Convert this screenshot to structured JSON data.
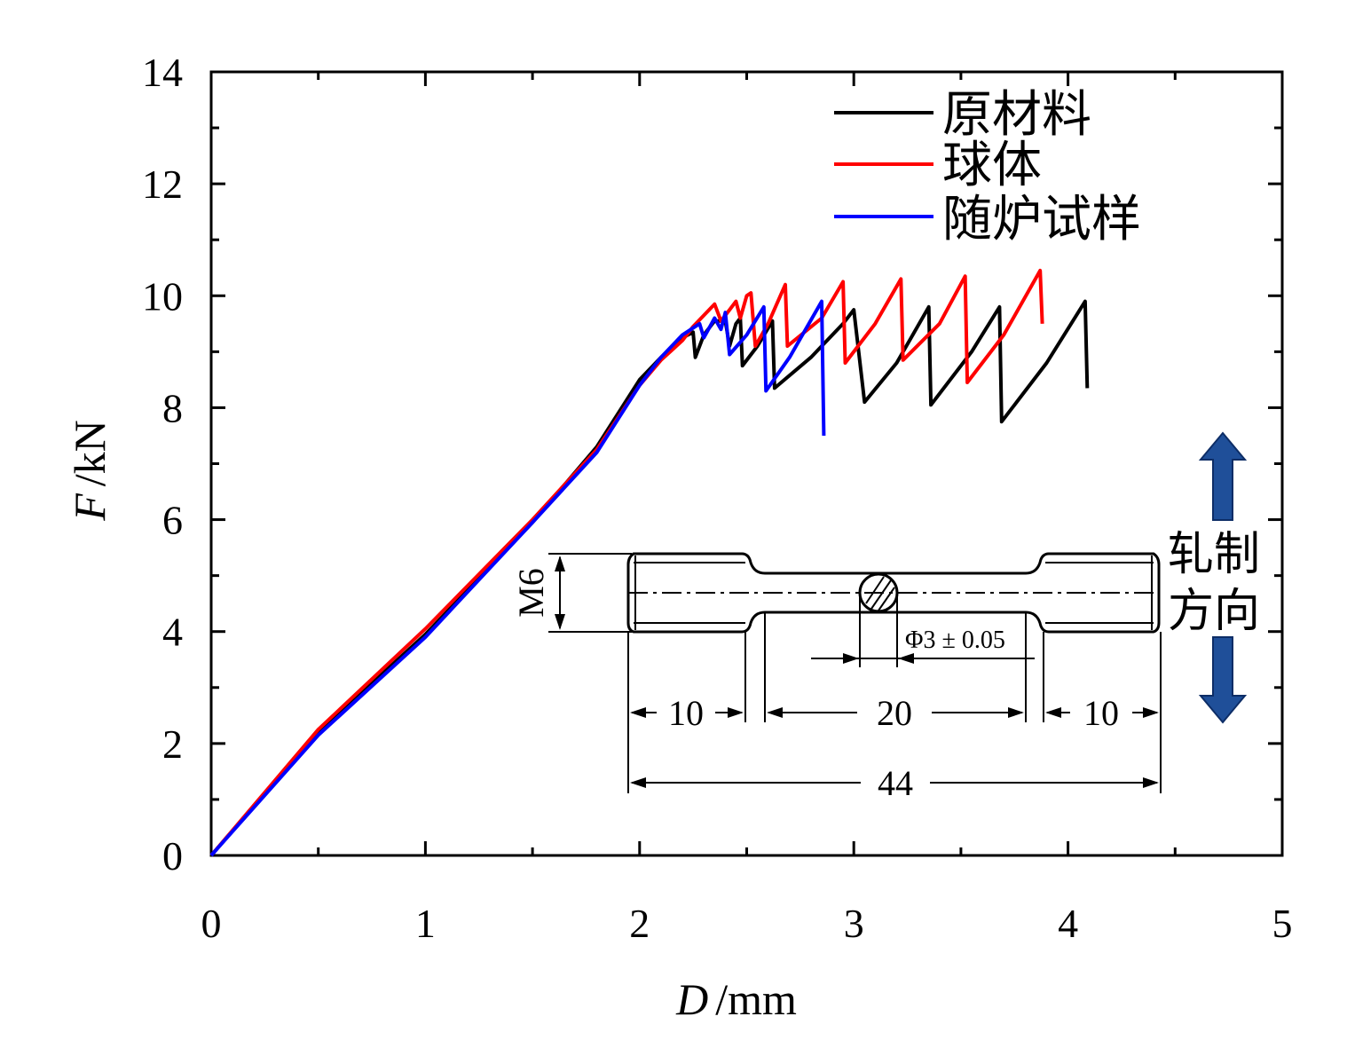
{
  "chart_data": {
    "type": "line",
    "xlabel": "/mm",
    "xlabel_symbol": "D",
    "ylabel": "/kN",
    "ylabel_symbol": "F",
    "xlim": [
      0,
      5
    ],
    "ylim": [
      0,
      14
    ],
    "x_ticks": [
      "0",
      "1",
      "2",
      "3",
      "4",
      "5"
    ],
    "y_ticks": [
      "0",
      "2",
      "4",
      "6",
      "8",
      "10",
      "12",
      "14"
    ],
    "grid": false,
    "legend_position": "top-right",
    "series": [
      {
        "name": "原材料",
        "color": "#000000",
        "points": [
          [
            0,
            0
          ],
          [
            0.5,
            2.2
          ],
          [
            1.0,
            3.95
          ],
          [
            1.5,
            5.95
          ],
          [
            1.8,
            7.3
          ],
          [
            2.0,
            8.5
          ],
          [
            2.1,
            8.9
          ],
          [
            2.2,
            9.25
          ],
          [
            2.25,
            9.35
          ],
          [
            2.26,
            8.9
          ],
          [
            2.3,
            9.3
          ],
          [
            2.35,
            9.55
          ],
          [
            2.4,
            9.55
          ],
          [
            2.42,
            9.1
          ],
          [
            2.45,
            9.5
          ],
          [
            2.47,
            9.6
          ],
          [
            2.48,
            8.75
          ],
          [
            2.55,
            9.1
          ],
          [
            2.62,
            9.55
          ],
          [
            2.63,
            8.35
          ],
          [
            2.8,
            8.9
          ],
          [
            2.95,
            9.5
          ],
          [
            3.0,
            9.75
          ],
          [
            3.05,
            8.1
          ],
          [
            3.2,
            8.8
          ],
          [
            3.35,
            9.8
          ],
          [
            3.36,
            8.05
          ],
          [
            3.55,
            9.0
          ],
          [
            3.68,
            9.8
          ],
          [
            3.69,
            7.75
          ],
          [
            3.9,
            8.8
          ],
          [
            4.08,
            9.9
          ],
          [
            4.09,
            8.35
          ]
        ]
      },
      {
        "name": "球体",
        "color": "#ff0000",
        "points": [
          [
            0,
            0
          ],
          [
            0.5,
            2.25
          ],
          [
            1.0,
            4.05
          ],
          [
            1.5,
            6.0
          ],
          [
            1.8,
            7.25
          ],
          [
            2.0,
            8.4
          ],
          [
            2.1,
            8.85
          ],
          [
            2.2,
            9.2
          ],
          [
            2.25,
            9.45
          ],
          [
            2.3,
            9.65
          ],
          [
            2.35,
            9.85
          ],
          [
            2.38,
            9.55
          ],
          [
            2.42,
            9.75
          ],
          [
            2.45,
            9.9
          ],
          [
            2.47,
            9.6
          ],
          [
            2.5,
            10.0
          ],
          [
            2.52,
            10.05
          ],
          [
            2.54,
            9.1
          ],
          [
            2.6,
            9.5
          ],
          [
            2.68,
            10.2
          ],
          [
            2.69,
            9.1
          ],
          [
            2.85,
            9.6
          ],
          [
            2.95,
            10.25
          ],
          [
            2.96,
            8.8
          ],
          [
            3.1,
            9.5
          ],
          [
            3.22,
            10.3
          ],
          [
            3.23,
            8.85
          ],
          [
            3.4,
            9.5
          ],
          [
            3.52,
            10.35
          ],
          [
            3.53,
            8.45
          ],
          [
            3.7,
            9.3
          ],
          [
            3.87,
            10.45
          ],
          [
            3.88,
            9.5
          ]
        ]
      },
      {
        "name": "随炉试样",
        "color": "#0000ff",
        "points": [
          [
            0,
            0
          ],
          [
            0.5,
            2.15
          ],
          [
            1.0,
            3.9
          ],
          [
            1.5,
            5.95
          ],
          [
            1.8,
            7.2
          ],
          [
            2.0,
            8.4
          ],
          [
            2.1,
            8.9
          ],
          [
            2.2,
            9.3
          ],
          [
            2.28,
            9.5
          ],
          [
            2.3,
            9.25
          ],
          [
            2.35,
            9.6
          ],
          [
            2.38,
            9.4
          ],
          [
            2.4,
            9.7
          ],
          [
            2.42,
            8.95
          ],
          [
            2.5,
            9.3
          ],
          [
            2.58,
            9.8
          ],
          [
            2.59,
            8.3
          ],
          [
            2.7,
            8.9
          ],
          [
            2.85,
            9.9
          ],
          [
            2.86,
            7.5
          ]
        ]
      }
    ],
    "inset": {
      "thread_label": "M6",
      "diameter_label": "Φ3 ± 0.05",
      "dim_left": "10",
      "dim_middle": "20",
      "dim_right": "10",
      "dim_total": "44",
      "direction_label_line1": "轧制",
      "direction_label_line2": "方向",
      "arrow_color": "#1f4f99"
    }
  }
}
